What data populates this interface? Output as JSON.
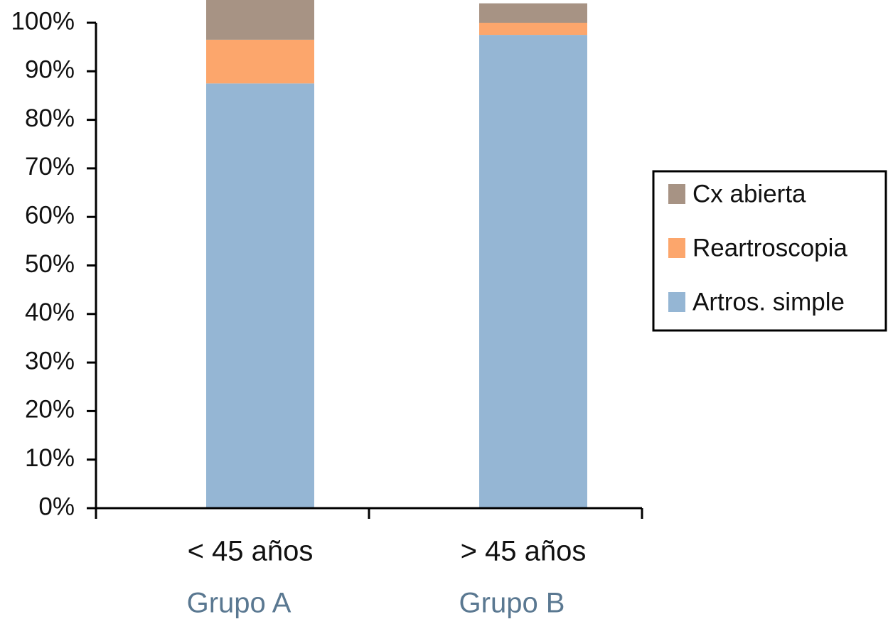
{
  "chart_data": {
    "type": "stacked_bar",
    "categories": [
      "< 45 años",
      "> 45 años"
    ],
    "groups": [
      "Grupo A",
      "Grupo B"
    ],
    "series": [
      {
        "name": "Artros. simple",
        "color": "#95b6d4",
        "values": [
          87.5,
          97.5
        ]
      },
      {
        "name": "Reartroscopia",
        "color": "#fca66c",
        "values": [
          9,
          2.5
        ]
      },
      {
        "name": "Cx abierta",
        "color": "#a79384",
        "values": [
          8.5,
          4
        ]
      }
    ],
    "ylim": [
      0,
      100
    ],
    "yticks": [
      {
        "value": 0,
        "label": "0%"
      },
      {
        "value": 10,
        "label": "10%"
      },
      {
        "value": 20,
        "label": "20%"
      },
      {
        "value": 30,
        "label": "30%"
      },
      {
        "value": 40,
        "label": "40%"
      },
      {
        "value": 50,
        "label": "50%"
      },
      {
        "value": 60,
        "label": "60%"
      },
      {
        "value": 70,
        "label": "70%"
      },
      {
        "value": 80,
        "label": "80%"
      },
      {
        "value": 90,
        "label": "90%"
      },
      {
        "value": 100,
        "label": "100%"
      }
    ]
  }
}
